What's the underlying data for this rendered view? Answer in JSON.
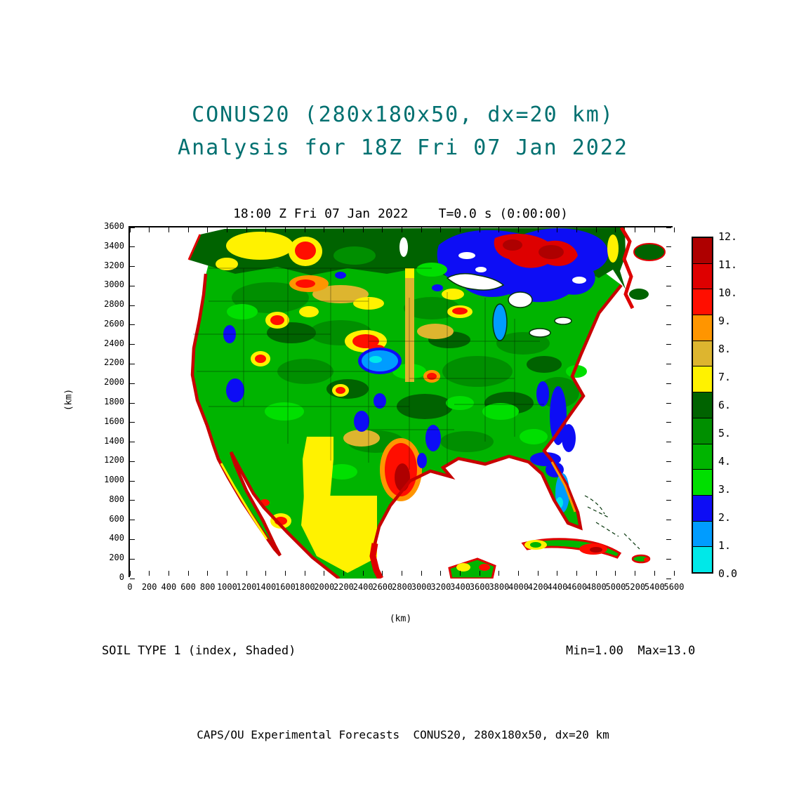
{
  "page": {
    "title_line1": "CONUS20 (280x180x50, dx=20 km)",
    "title_line2": "Analysis for 18Z Fri 07 Jan 2022",
    "title_color": "#007070",
    "footer": "CAPS/OU Experimental Forecasts  CONUS20, 280x180x50, dx=20 km"
  },
  "plot": {
    "subtitle": "18:00 Z Fri 07 Jan 2022    T=0.0 s (0:00:00)",
    "field_label": "SOIL TYPE 1 (index, Shaded)",
    "range_label": "Min=1.00  Max=13.0",
    "x_axis": {
      "label": "(km)",
      "ticks": [
        "0",
        "200",
        "400",
        "600",
        "800",
        "1000",
        "1200",
        "1400",
        "1600",
        "1800",
        "2000",
        "2200",
        "2400",
        "2600",
        "2800",
        "3000",
        "3200",
        "3400",
        "3600",
        "3800",
        "4000",
        "4200",
        "4400",
        "4600",
        "4800",
        "5000",
        "5200",
        "5400",
        "5600"
      ]
    },
    "y_axis": {
      "label": "(km)",
      "ticks": [
        "3600",
        "3400",
        "3200",
        "3000",
        "2800",
        "2600",
        "2400",
        "2200",
        "2000",
        "1800",
        "1600",
        "1400",
        "1200",
        "1000",
        "800",
        "600",
        "400",
        "200",
        "0"
      ]
    }
  },
  "colorbar": {
    "labels": [
      "0.0",
      "1.",
      "2.",
      "3.",
      "4.",
      "5.",
      "6.",
      "7.",
      "8.",
      "9.",
      "10.",
      "11.",
      "12."
    ],
    "colors_bottom_to_top": [
      "#00E8E8",
      "#009CFF",
      "#0D0DF5",
      "#00DF00",
      "#00B400",
      "#008F00",
      "#006300",
      "#FFF200",
      "#DDB52F",
      "#FF9500",
      "#FF0E00",
      "#DE0000",
      "#AE0000"
    ],
    "quantity": "soil type index"
  }
}
